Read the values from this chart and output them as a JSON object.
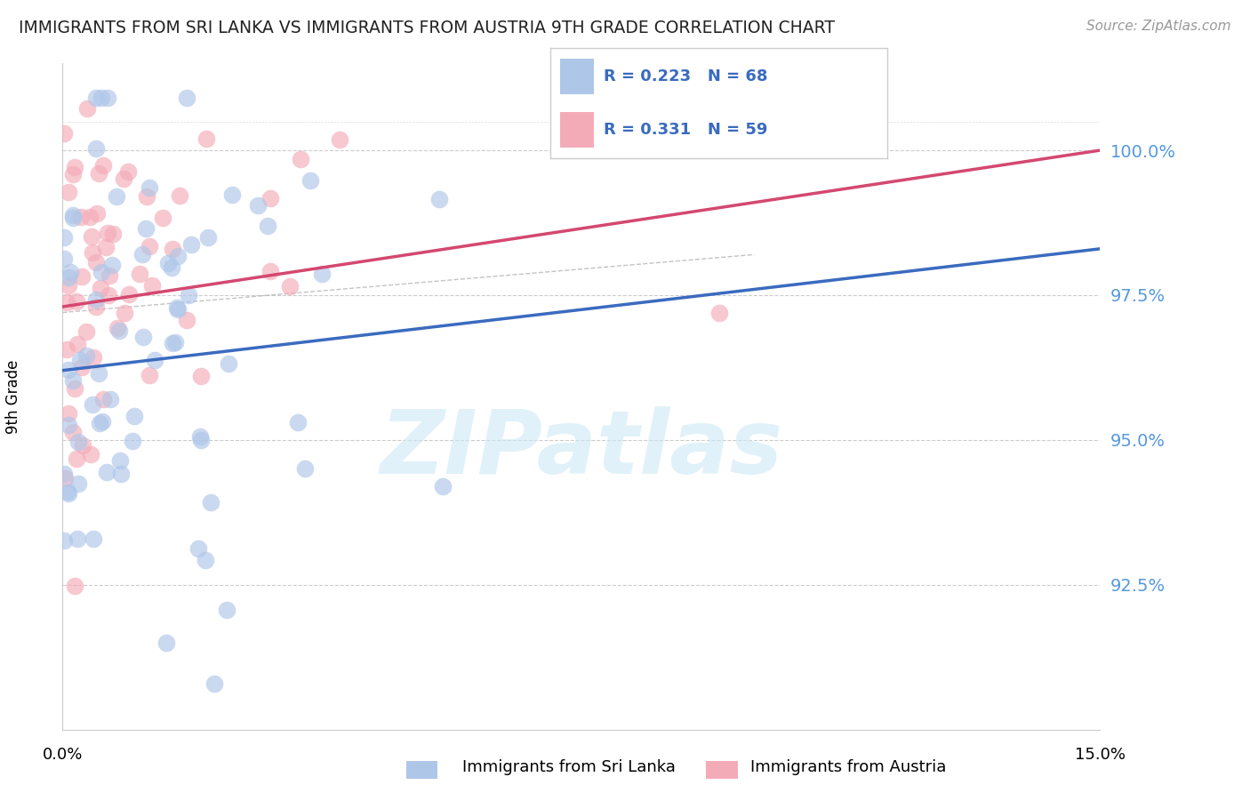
{
  "title": "IMMIGRANTS FROM SRI LANKA VS IMMIGRANTS FROM AUSTRIA 9TH GRADE CORRELATION CHART",
  "source": "Source: ZipAtlas.com",
  "ylabel": "9th Grade",
  "R1": 0.223,
  "N1": 68,
  "R2": 0.331,
  "N2": 59,
  "color_sri_lanka": "#aec6e8",
  "color_austria": "#f4abb8",
  "line_color_sri_lanka": "#3a6bbf",
  "line_color_austria": "#d44870",
  "watermark_color": "#cde8f5",
  "legend_label_1": "Immigrants from Sri Lanka",
  "legend_label_2": "Immigrants from Austria",
  "x_min": 0.0,
  "x_max": 15.0,
  "y_min": 90.0,
  "y_max": 101.5,
  "ytick_vals": [
    92.5,
    95.0,
    97.5,
    100.0
  ],
  "title_color": "#222222",
  "source_color": "#999999",
  "tick_color": "#5599dd"
}
